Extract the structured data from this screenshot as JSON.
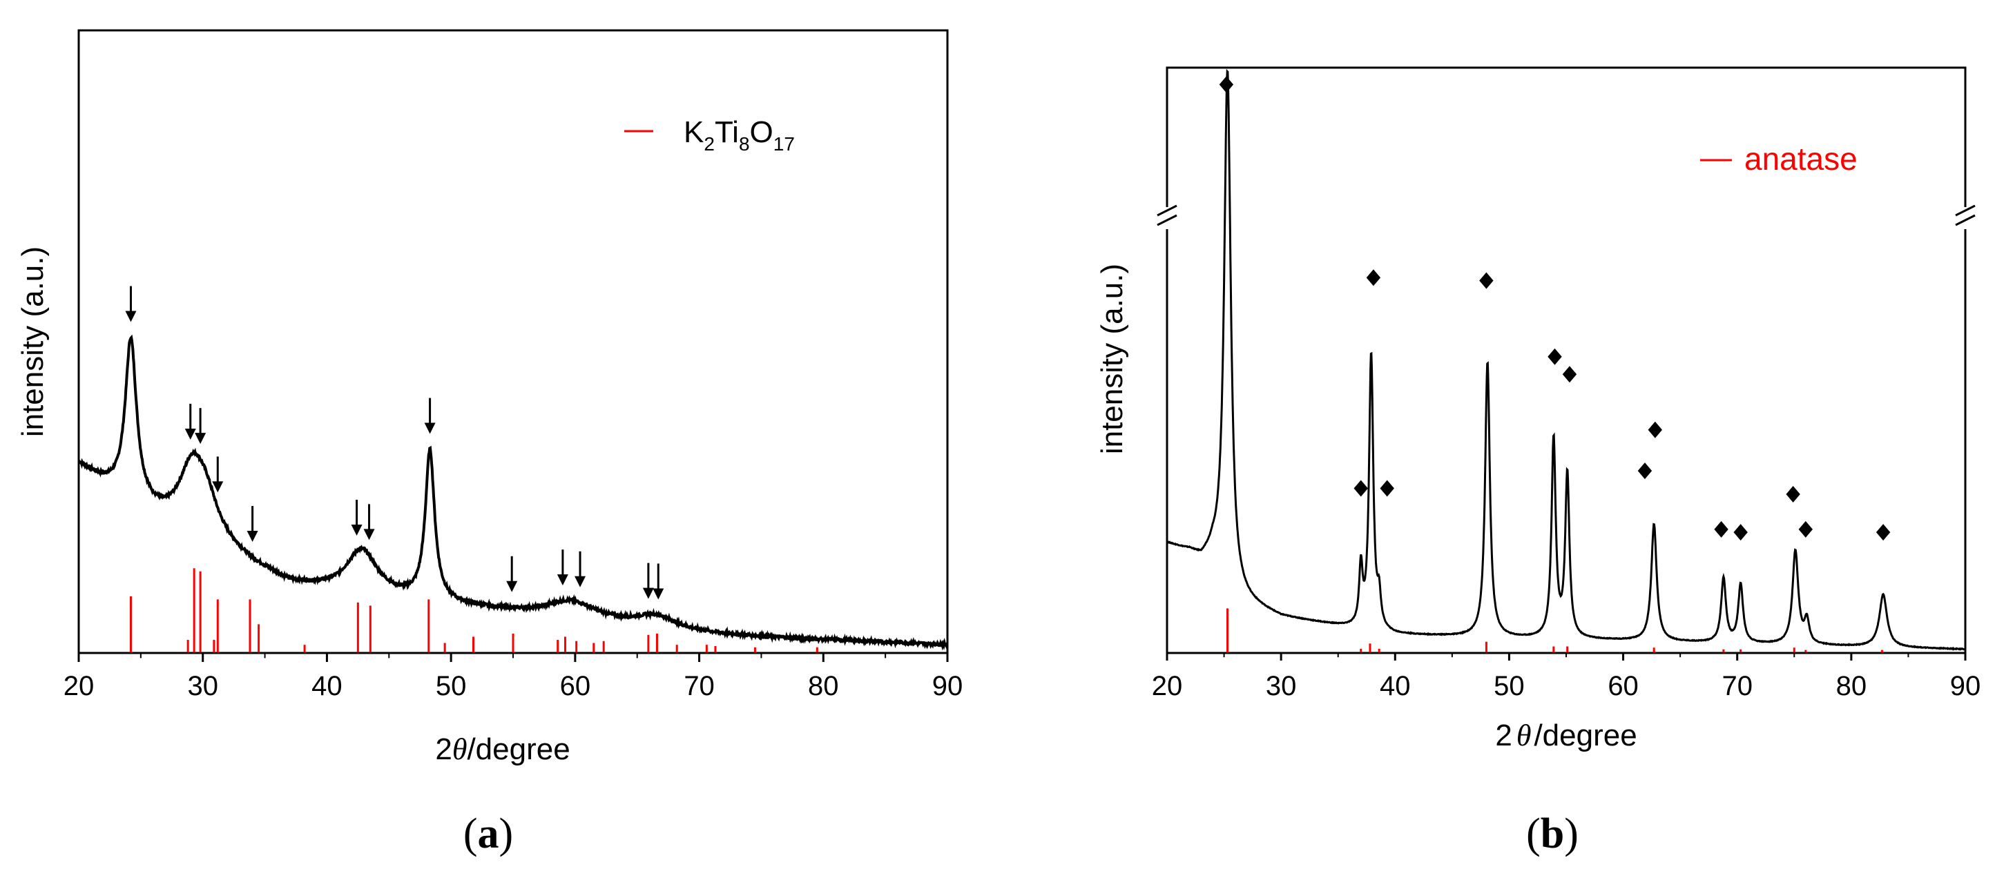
{
  "panels": [
    {
      "id": "a",
      "caption": {
        "open": "(",
        "letter": "a",
        "close": ")"
      },
      "chart_data": {
        "type": "line",
        "title": "",
        "xlabel": {
          "num": "2",
          "sym": "θ",
          "rest": "/degree"
        },
        "ylabel": "intensity (a.u.)",
        "xlim": [
          20,
          90
        ],
        "ylim": [
          0,
          100
        ],
        "xticks": [
          "20",
          "30",
          "40",
          "50",
          "60",
          "70",
          "80",
          "90"
        ],
        "legend": {
          "position": "top-right",
          "base": "K",
          "s1": "2",
          "mid": "Ti",
          "s2": "8",
          "mid2": "O",
          "s3": "17",
          "color": "#ff0000"
        },
        "pattern": {
          "background": [
            [
              20,
              30
            ],
            [
              22,
              27
            ],
            [
              24,
              24
            ],
            [
              27,
              21
            ],
            [
              29,
              20
            ],
            [
              31,
              18
            ],
            [
              34,
              14
            ],
            [
              37,
              11
            ],
            [
              40,
              10
            ],
            [
              44,
              9
            ],
            [
              48,
              8
            ],
            [
              52,
              7
            ],
            [
              56,
              6
            ],
            [
              60,
              5
            ],
            [
              65,
              4
            ],
            [
              70,
              3
            ],
            [
              75,
              2.4
            ],
            [
              80,
              2
            ],
            [
              85,
              1.6
            ],
            [
              90,
              1.2
            ]
          ],
          "peaks": [
            {
              "x": 24.2,
              "h": 26,
              "w": 0.55
            },
            {
              "x": 29.2,
              "h": 10,
              "w": 1.3
            },
            {
              "x": 30.3,
              "h": 4,
              "w": 1.0
            },
            {
              "x": 42.8,
              "h": 7,
              "w": 1.5
            },
            {
              "x": 48.3,
              "h": 24,
              "w": 0.45
            },
            {
              "x": 59.7,
              "h": 3,
              "w": 2.5
            },
            {
              "x": 66.5,
              "h": 2,
              "w": 2
            }
          ]
        },
        "reference_lines": [
          {
            "x": 24.2,
            "h": 9
          },
          {
            "x": 28.8,
            "h": 2
          },
          {
            "x": 29.3,
            "h": 13.5
          },
          {
            "x": 29.8,
            "h": 13
          },
          {
            "x": 30.9,
            "h": 2
          },
          {
            "x": 31.2,
            "h": 8.5
          },
          {
            "x": 33.8,
            "h": 8.5
          },
          {
            "x": 34.5,
            "h": 4.5
          },
          {
            "x": 38.2,
            "h": 1.2
          },
          {
            "x": 42.5,
            "h": 8
          },
          {
            "x": 43.5,
            "h": 7.5
          },
          {
            "x": 48.2,
            "h": 8.5
          },
          {
            "x": 49.5,
            "h": 1.5
          },
          {
            "x": 51.8,
            "h": 2.5
          },
          {
            "x": 55,
            "h": 3
          },
          {
            "x": 58.6,
            "h": 2
          },
          {
            "x": 59.2,
            "h": 2.5
          },
          {
            "x": 60.1,
            "h": 1.8
          },
          {
            "x": 61.5,
            "h": 1.5
          },
          {
            "x": 62.3,
            "h": 1.8
          },
          {
            "x": 65.9,
            "h": 2.8
          },
          {
            "x": 66.6,
            "h": 3
          },
          {
            "x": 68.2,
            "h": 1.2
          },
          {
            "x": 70.6,
            "h": 1.2
          },
          {
            "x": 71.3,
            "h": 1
          },
          {
            "x": 74.5,
            "h": 0.8
          },
          {
            "x": 79.5,
            "h": 0.8
          }
        ],
        "arrows": [
          24.2,
          29.0,
          29.8,
          31.2,
          34.0,
          42.4,
          43.4,
          48.3,
          54.9,
          59.0,
          60.4,
          65.9,
          66.7
        ]
      }
    },
    {
      "id": "b",
      "caption": {
        "open": "(",
        "letter": "b",
        "close": ")"
      },
      "chart_data": {
        "type": "line",
        "title": "",
        "xlabel": {
          "num": "2",
          "sym": "θ",
          "rest": "/degree"
        },
        "ylabel": "intensity (a.u.)",
        "xlim": [
          20,
          90
        ],
        "ylim": [
          0,
          100
        ],
        "axis_break": true,
        "xticks": [
          "20",
          "30",
          "40",
          "50",
          "60",
          "70",
          "80",
          "90"
        ],
        "legend": {
          "position": "top-right",
          "label": "anatase",
          "color": "#ff0000"
        },
        "pattern": {
          "background": [
            [
              20,
              18.5
            ],
            [
              22,
              17
            ],
            [
              23,
              15.5
            ],
            [
              24,
              16
            ],
            [
              26,
              9
            ],
            [
              30,
              6
            ],
            [
              35,
              4.5
            ],
            [
              40,
              3
            ],
            [
              50,
              2.4
            ],
            [
              60,
              2
            ],
            [
              70,
              1.5
            ],
            [
              80,
              1
            ],
            [
              90,
              0.5
            ]
          ],
          "peaks": [
            {
              "x": 25.3,
              "h": 88,
              "w": 0.35
            },
            {
              "x": 37.0,
              "h": 10,
              "w": 0.18
            },
            {
              "x": 37.9,
              "h": 47,
              "w": 0.22
            },
            {
              "x": 38.6,
              "h": 5,
              "w": 0.18
            },
            {
              "x": 48.1,
              "h": 47,
              "w": 0.25
            },
            {
              "x": 53.9,
              "h": 34,
              "w": 0.22
            },
            {
              "x": 55.1,
              "h": 28,
              "w": 0.22
            },
            {
              "x": 62.7,
              "h": 20,
              "w": 0.28
            },
            {
              "x": 68.8,
              "h": 11,
              "w": 0.25
            },
            {
              "x": 70.3,
              "h": 10,
              "w": 0.25
            },
            {
              "x": 75.1,
              "h": 16,
              "w": 0.3
            },
            {
              "x": 76.1,
              "h": 4,
              "w": 0.25
            },
            {
              "x": 82.8,
              "h": 9,
              "w": 0.4
            }
          ]
        },
        "reference_lines": [
          {
            "x": 25.3,
            "h": 7.5
          },
          {
            "x": 37.0,
            "h": 0.6
          },
          {
            "x": 37.8,
            "h": 1.5
          },
          {
            "x": 38.6,
            "h": 0.6
          },
          {
            "x": 48.0,
            "h": 1.8
          },
          {
            "x": 53.9,
            "h": 1
          },
          {
            "x": 55.1,
            "h": 1
          },
          {
            "x": 62.7,
            "h": 0.8
          },
          {
            "x": 68.8,
            "h": 0.5
          },
          {
            "x": 70.3,
            "h": 0.5
          },
          {
            "x": 75.0,
            "h": 0.8
          },
          {
            "x": 76.0,
            "h": 0.4
          },
          {
            "x": 82.7,
            "h": 0.4
          }
        ],
        "markers": [
          [
            25.2,
            97
          ],
          [
            37.0,
            28
          ],
          [
            39.3,
            28
          ],
          [
            38.1,
            64
          ],
          [
            48.0,
            63.5
          ],
          [
            54.0,
            50.5
          ],
          [
            55.3,
            47.5
          ],
          [
            61.9,
            31
          ],
          [
            62.8,
            38
          ],
          [
            68.6,
            21
          ],
          [
            70.3,
            20.5
          ],
          [
            74.9,
            27
          ],
          [
            76.0,
            21
          ],
          [
            82.8,
            20.5
          ]
        ]
      }
    }
  ]
}
